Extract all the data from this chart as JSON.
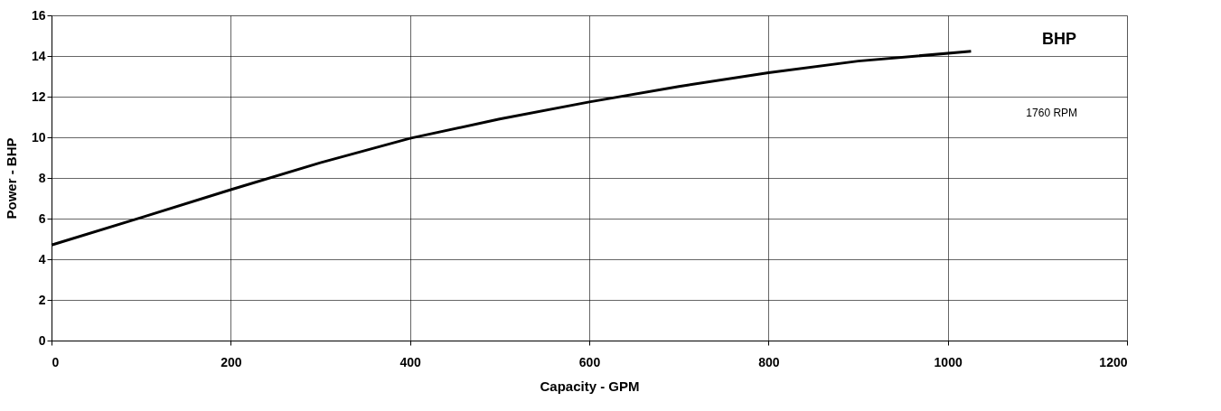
{
  "chart_data": {
    "type": "line",
    "xlabel": "Capacity - GPM",
    "ylabel": "Power - BHP",
    "x": [
      0,
      100,
      200,
      300,
      400,
      500,
      600,
      700,
      800,
      900,
      1026
    ],
    "series": [
      {
        "color": "#000000",
        "values": [
          4.7,
          6.05,
          7.42,
          8.75,
          9.95,
          10.9,
          11.74,
          12.5,
          13.18,
          13.75,
          14.23
        ]
      }
    ],
    "xlim": [
      0,
      1200
    ],
    "ylim": [
      0,
      16
    ],
    "xticks": [
      0,
      200,
      400,
      600,
      800,
      1000,
      1200
    ],
    "yticks": [
      0,
      2,
      4,
      6,
      8,
      10,
      12,
      14,
      16
    ],
    "grid": true,
    "legend": false,
    "marker": "none",
    "line_style": "solid",
    "annotations": [
      "BHP",
      "1760 RPM"
    ]
  }
}
